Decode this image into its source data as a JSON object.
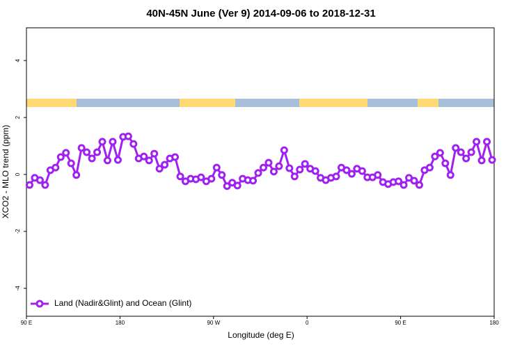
{
  "chart_data": {
    "type": "line",
    "title": "40N-45N June (Ver 9)   2014-09-06 to 2018-12-31",
    "x_label": "Longitude (deg E)",
    "y_label": "XCO2 - MLO trend (ppm)",
    "xlim": [
      90,
      540
    ],
    "ylim": [
      -4.98,
      5.15
    ],
    "xticks": [
      {
        "value": 90,
        "label": "90 E"
      },
      {
        "value": 180,
        "label": "180"
      },
      {
        "value": 270,
        "label": "90 W"
      },
      {
        "value": 360,
        "label": "0"
      },
      {
        "value": 450,
        "label": "90 E"
      },
      {
        "value": 540,
        "label": "180"
      }
    ],
    "yticks": [
      -4,
      -2,
      0,
      2,
      4
    ],
    "legend": "bottom-left",
    "x": [
      93,
      98,
      103,
      108,
      113,
      118,
      123,
      128,
      133,
      138,
      143,
      148,
      153,
      158,
      163,
      168,
      173,
      178,
      183,
      188,
      193,
      198,
      203,
      208,
      213,
      218,
      223,
      228,
      233,
      238,
      243,
      248,
      253,
      258,
      263,
      268,
      273,
      278,
      283,
      288,
      293,
      298,
      303,
      308,
      313,
      318,
      323,
      328,
      333,
      338,
      343,
      348,
      353,
      358,
      363,
      368,
      373,
      378,
      383,
      388,
      393,
      398,
      403,
      408,
      413,
      418,
      423,
      428,
      433,
      438,
      443,
      448,
      453,
      458,
      463,
      468,
      473,
      478,
      483,
      488,
      493,
      498,
      503,
      508,
      513,
      518,
      523,
      528,
      533,
      538
    ],
    "series": [
      {
        "name": "Land (Nadir&Glint) and Ocean (Glint)",
        "color": "#a020f0",
        "values": [
          -0.37,
          -0.12,
          -0.2,
          -0.37,
          0.15,
          0.24,
          0.61,
          0.76,
          0.39,
          -0.02,
          0.93,
          0.78,
          0.56,
          0.78,
          1.15,
          0.49,
          1.15,
          0.51,
          1.32,
          1.34,
          1.07,
          0.56,
          0.63,
          0.49,
          0.73,
          0.2,
          0.34,
          0.56,
          0.61,
          -0.07,
          -0.24,
          -0.15,
          -0.17,
          -0.1,
          -0.24,
          -0.15,
          0.24,
          -0.02,
          -0.41,
          -0.29,
          -0.39,
          -0.15,
          -0.2,
          -0.22,
          0.05,
          0.24,
          0.41,
          0.1,
          0.29,
          0.85,
          0.22,
          -0.07,
          0.17,
          0.37,
          0.2,
          0.12,
          -0.12,
          -0.2,
          -0.12,
          -0.07,
          0.24,
          0.15,
          0.02,
          0.2,
          0.12,
          -0.1,
          -0.1,
          -0.02,
          -0.27,
          -0.34,
          -0.27,
          -0.24,
          -0.37,
          -0.12,
          -0.22,
          -0.37,
          0.15,
          0.24,
          0.63,
          0.76,
          0.39,
          -0.02,
          0.93,
          0.78,
          0.56,
          0.78,
          1.15,
          0.49,
          1.15,
          0.51
        ]
      }
    ]
  }
}
